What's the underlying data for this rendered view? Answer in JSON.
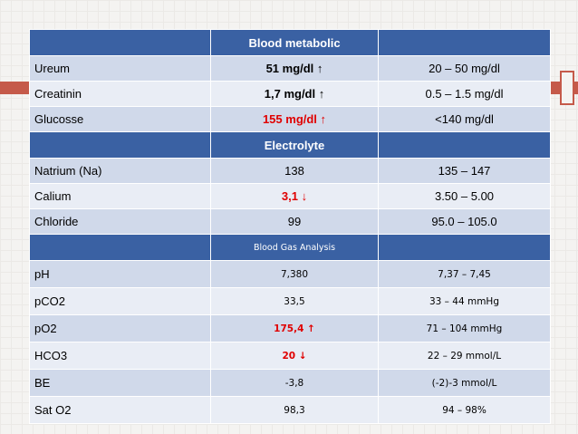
{
  "slide": {
    "accent_color": "#c55a4a",
    "header_color": "#3a61a3"
  },
  "sections": {
    "metabolic": {
      "title": "Blood metabolic",
      "rows": [
        {
          "name": "Ureum",
          "value": "51 mg/dl ↑",
          "reference": "20 – 50 mg/dl"
        },
        {
          "name": "Creatinin",
          "value": "1,7 mg/dl  ↑",
          "reference": "0.5 – 1.5 mg/dl"
        },
        {
          "name": "Glucosse",
          "value": "155 mg/dl ↑",
          "reference": "<140 mg/dl"
        }
      ]
    },
    "electrolyte": {
      "title": "Electrolyte",
      "rows": [
        {
          "name": "Natrium (Na)",
          "value": "138",
          "reference": "135 – 147"
        },
        {
          "name": "Calium",
          "value": "3,1 ↓",
          "reference": "3.50 – 5.00"
        },
        {
          "name": "Chloride",
          "value": "99",
          "reference": "95.0 – 105.0"
        }
      ]
    },
    "gas": {
      "title": "Blood Gas Analysis",
      "rows": [
        {
          "name": "pH",
          "value": "7,380",
          "reference": "7,37 – 7,45"
        },
        {
          "name": "pCO2",
          "value": "33,5",
          "reference": "33 – 44 mmHg"
        },
        {
          "name": "pO2",
          "value": "175,4 ↑",
          "reference": "71 – 104 mmHg"
        },
        {
          "name": "HCO3",
          "value": "20 ↓",
          "reference": "22 – 29 mmol/L"
        },
        {
          "name": "BE",
          "value": "-3,8",
          "reference": "(-2)-3 mmol/L"
        },
        {
          "name": "Sat O2",
          "value": "98,3",
          "reference": "94 – 98%"
        }
      ]
    }
  }
}
